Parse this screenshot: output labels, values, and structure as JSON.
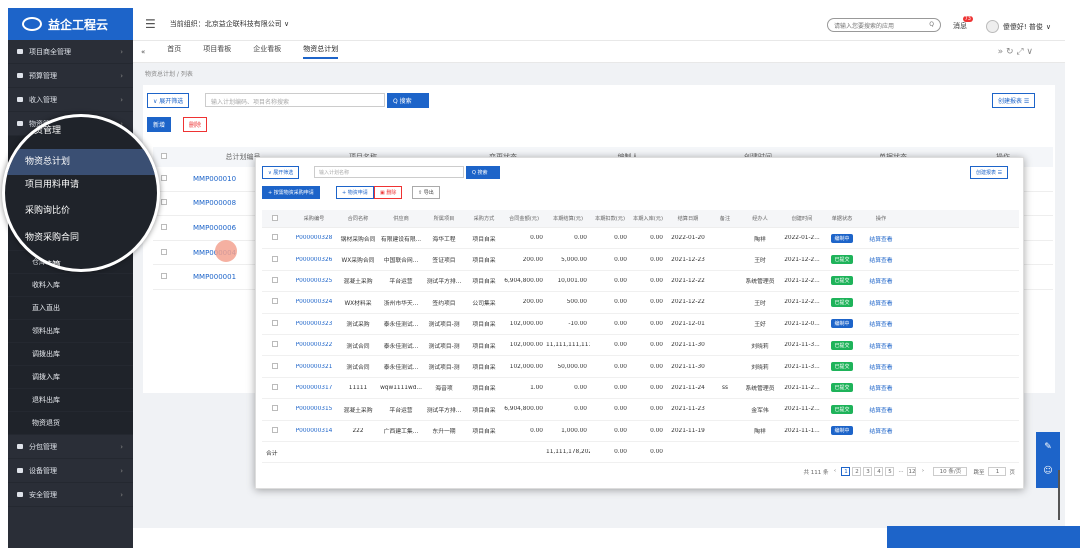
{
  "app": {
    "logo": "益企工程云"
  },
  "sidebar": {
    "items": [
      {
        "label": "项目商全管理",
        "type": "main"
      },
      {
        "label": "预算管理",
        "type": "main"
      },
      {
        "label": "收入管理",
        "type": "main"
      },
      {
        "label": "物资管理",
        "type": "main"
      },
      {
        "label": "物资总计划",
        "type": "sub"
      },
      {
        "label": "项目用料申请",
        "type": "sub"
      },
      {
        "label": "采购询比价",
        "type": "sub"
      },
      {
        "label": "物资采购合同",
        "type": "sub"
      },
      {
        "label": "合同结算",
        "type": "sub"
      },
      {
        "label": "仓库盘点",
        "type": "sub"
      },
      {
        "label": "收料入库",
        "type": "sub"
      },
      {
        "label": "直入直出",
        "type": "sub"
      },
      {
        "label": "领料出库",
        "type": "sub"
      },
      {
        "label": "调拨出库",
        "type": "sub"
      },
      {
        "label": "调拨入库",
        "type": "sub"
      },
      {
        "label": "退料出库",
        "type": "sub"
      },
      {
        "label": "物资退货",
        "type": "sub"
      },
      {
        "label": "分包管理",
        "type": "main"
      },
      {
        "label": "设备管理",
        "type": "main"
      },
      {
        "label": "安全管理",
        "type": "main"
      }
    ],
    "zoom_items": [
      "物资管理",
      "物资总计划",
      "项目用料申请",
      "采购询比价",
      "物资采购合同",
      "合同结算"
    ]
  },
  "header": {
    "org_label": "当前组织：北京益企联科技有限公司",
    "search_placeholder": "请输入您要搜索的应用",
    "messages_label": "消息",
    "messages_count": "73",
    "user": "傻傻好! 普俊"
  },
  "tabs": [
    {
      "label": "首页"
    },
    {
      "label": "项目看板"
    },
    {
      "label": "企业看板"
    },
    {
      "label": "物资总计划",
      "active": true
    }
  ],
  "breadcrumb": "物资总计划 / 列表",
  "bg": {
    "filter_btn": "∨ 展开筛选",
    "search_placeholder": "输入计划编码、项目名称搜索",
    "search_btn": "Q 搜索",
    "add_btn": "新增",
    "del_btn": "删除",
    "create_btn": "创建报表 ☰",
    "columns": [
      "总计划编号",
      "项目名称",
      "变更状态",
      "编制人",
      "创建时间",
      "单据状态",
      "操作"
    ],
    "rows": [
      "MMP000010",
      "MMP000008",
      "MMP000006",
      "MMP000004",
      "MMP000001"
    ]
  },
  "fw": {
    "filter_btn": "∨ 展开筛选",
    "search_placeholder": "输入计划名称",
    "search_btn": "Q 搜索",
    "create_btn": "创建报表 ☰",
    "actions": [
      "+ 按需物资采购申请",
      "+ 物资申请",
      "删除",
      "导出"
    ],
    "columns": [
      "采购编号",
      "合同名称",
      "供应商",
      "所属项目",
      "采购方式",
      "合同金额(元)",
      "本期结算(元)",
      "本期扣款(元)",
      "本期入库(元)",
      "结算日期",
      "备注",
      "经办人",
      "创建时间",
      "单据状态",
      "操作"
    ],
    "rows": [
      [
        "P000000328",
        "钢材采购合同",
        "有限建设有限...",
        "海华工程",
        "项目自采",
        "0.00",
        "0.00",
        "0.00",
        "0.00",
        "2022-01-20",
        "",
        "陶祥",
        "2022-01-2...",
        "编制中",
        "结算查看"
      ],
      [
        "P000000326",
        "WX采购合同",
        "中国联合网...",
        "签证项目",
        "项目自采",
        "200.00",
        "5,000.00",
        "0.00",
        "0.00",
        "2021-12-23",
        "",
        "王时",
        "2021-12-2...",
        "已提交",
        "结算查看"
      ],
      [
        "P000000325",
        "混凝土采购",
        "平台运营",
        "测试平方排...",
        "项目自采",
        "6,904,800.00",
        "10,001.00",
        "0.00",
        "0.00",
        "2021-12-22",
        "",
        "系统管理员",
        "2021-12-2...",
        "已提交",
        "结算查看"
      ],
      [
        "P000000324",
        "WX材料采",
        "浙州市华天...",
        "签约项目",
        "公司集采",
        "200.00",
        "500.00",
        "0.00",
        "0.00",
        "2021-12-22",
        "",
        "王时",
        "2021-12-2...",
        "已提交",
        "结算查看"
      ],
      [
        "P000000323",
        "测试采购",
        "泰永佳测试...",
        "测试项目-测",
        "项目自采",
        "102,000.00",
        "-10.00",
        "0.00",
        "0.00",
        "2021-12-01",
        "",
        "王好",
        "2021-12-0...",
        "编制中",
        "结算查看"
      ],
      [
        "P000000322",
        "测试合同",
        "泰永佳测试...",
        "测试项目-测",
        "项目自采",
        "102,000.00",
        "11,111,111,111...",
        "0.00",
        "0.00",
        "2021-11-30",
        "",
        "刘晓莉",
        "2021-11-3...",
        "已提交",
        "结算查看"
      ],
      [
        "P000000321",
        "测试合同",
        "泰永佳测试...",
        "测试项目-测",
        "项目自采",
        "102,000.00",
        "50,000.00",
        "0.00",
        "0.00",
        "2021-11-30",
        "",
        "刘晓莉",
        "2021-11-3...",
        "已提交",
        "结算查看"
      ],
      [
        "P000000317",
        "11111",
        "wqw1111wd...",
        "海音项",
        "项目自采",
        "1.00",
        "0.00",
        "0.00",
        "0.00",
        "2021-11-24",
        "ss",
        "系统管理员",
        "2021-11-2...",
        "已提交",
        "结算查看"
      ],
      [
        "P000000315",
        "混凝土采购",
        "平台运营",
        "测试平方排...",
        "项目自采",
        "6,904,800.00",
        "0.00",
        "0.00",
        "0.00",
        "2021-11-23",
        "",
        "金军伟",
        "2021-11-2...",
        "已提交",
        "结算查看"
      ],
      [
        "P000000314",
        "222",
        "广西建工集...",
        "东升一期",
        "项目自采",
        "0.00",
        "1,000.00",
        "0.00",
        "0.00",
        "2021-11-19",
        "",
        "陶祥",
        "2021-11-1...",
        "编制中",
        "结算查看"
      ]
    ],
    "total_label": "合计",
    "total_value": "11,111,178,202...",
    "total_zeros": [
      "0.00",
      "0.00"
    ],
    "pager": {
      "total": "共 111 条",
      "pages": [
        "1",
        "2",
        "3",
        "4",
        "5",
        "...",
        "12"
      ],
      "per_page": "10 条/页",
      "goto": "跳至",
      "goto_val": "1",
      "unit": "页"
    }
  },
  "colors": {
    "accent": "#1d64c9",
    "sidebar": "#2a2e37",
    "draft": "#1d64c9",
    "submitted": "#1eb35a"
  }
}
